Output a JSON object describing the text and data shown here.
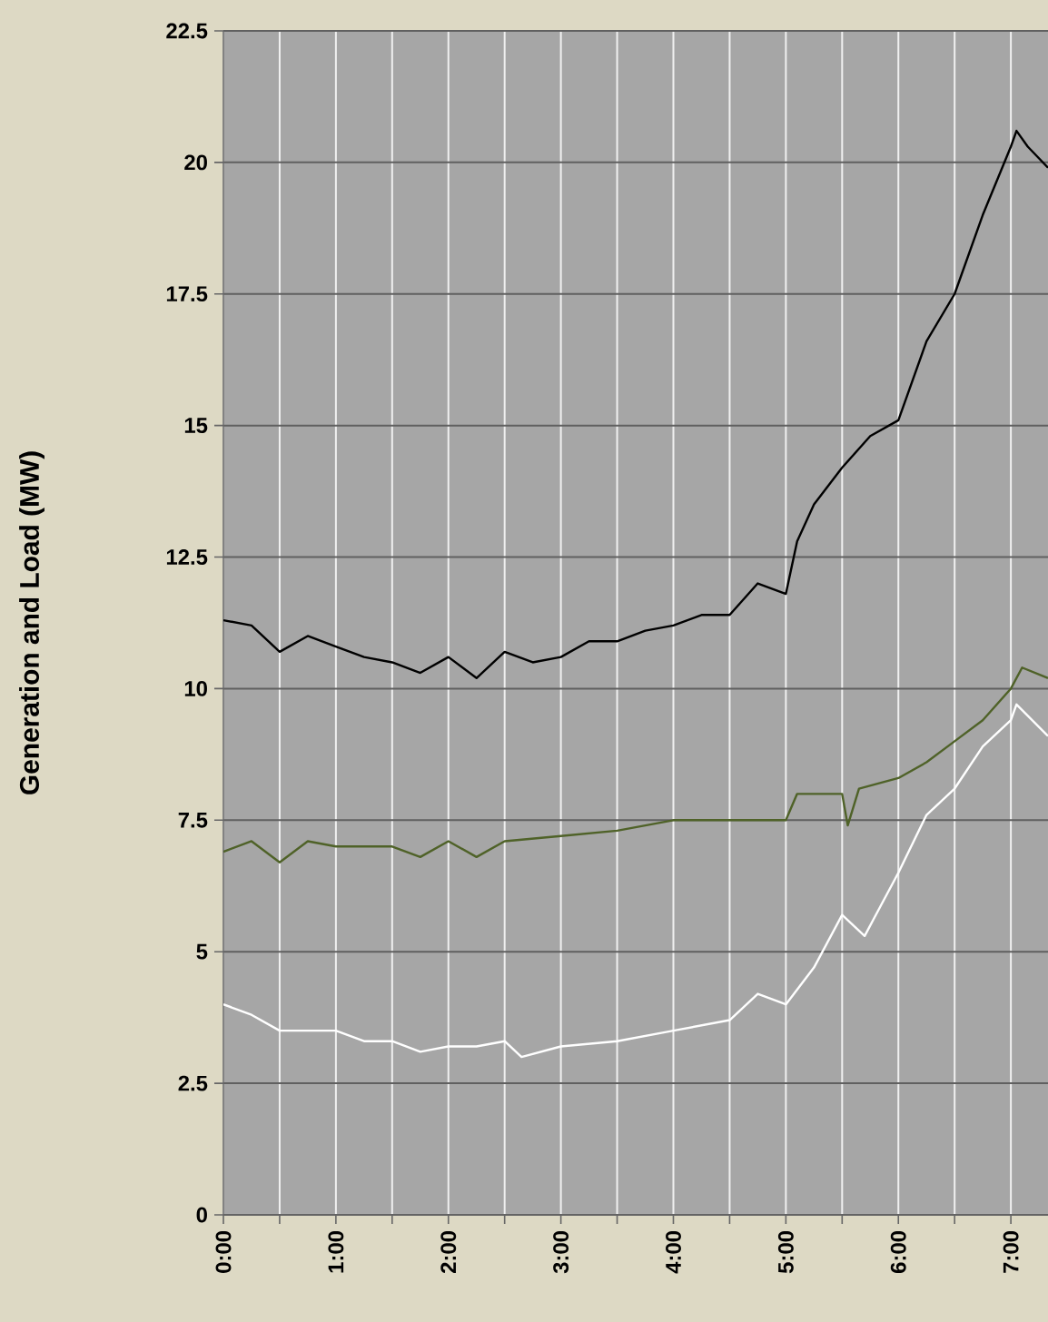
{
  "chart_data": {
    "type": "line",
    "ylabel": "Generation and Load (MW)",
    "xlim": [
      0,
      7.33
    ],
    "ylim": [
      0,
      22.5
    ],
    "xticks": [
      {
        "value": 0,
        "label": "0:00"
      },
      {
        "value": 0.5,
        "label": null
      },
      {
        "value": 1,
        "label": "1:00"
      },
      {
        "value": 1.5,
        "label": null
      },
      {
        "value": 2,
        "label": "2:00"
      },
      {
        "value": 2.5,
        "label": null
      },
      {
        "value": 3,
        "label": "3:00"
      },
      {
        "value": 3.5,
        "label": null
      },
      {
        "value": 4,
        "label": "4:00"
      },
      {
        "value": 4.5,
        "label": null
      },
      {
        "value": 5,
        "label": "5:00"
      },
      {
        "value": 5.5,
        "label": null
      },
      {
        "value": 6,
        "label": "6:00"
      },
      {
        "value": 6.5,
        "label": null
      },
      {
        "value": 7,
        "label": "7:00"
      }
    ],
    "yticks": [
      0,
      2.5,
      5,
      7.5,
      10,
      12.5,
      15,
      17.5,
      20,
      22.5
    ],
    "grid": true,
    "series": [
      {
        "color": "#000000",
        "x": [
          0,
          0.25,
          0.5,
          0.75,
          1.0,
          1.25,
          1.5,
          1.75,
          2.0,
          2.25,
          2.5,
          2.75,
          3.0,
          3.25,
          3.5,
          3.75,
          4.0,
          4.25,
          4.5,
          4.75,
          5.0,
          5.1,
          5.25,
          5.5,
          5.75,
          6.0,
          6.25,
          6.5,
          6.75,
          7.0,
          7.05,
          7.15,
          7.33
        ],
        "values": [
          11.3,
          11.2,
          10.7,
          11.0,
          10.8,
          10.6,
          10.5,
          10.3,
          10.6,
          10.2,
          10.7,
          10.5,
          10.6,
          10.9,
          10.9,
          11.1,
          11.2,
          11.4,
          11.4,
          12.0,
          11.8,
          12.8,
          13.5,
          14.2,
          14.8,
          15.1,
          16.6,
          17.5,
          19.0,
          20.3,
          20.6,
          20.3,
          19.9
        ]
      },
      {
        "color": "#4f6228",
        "x": [
          0,
          0.25,
          0.5,
          0.75,
          1.0,
          1.5,
          1.75,
          2.0,
          2.25,
          2.5,
          3.0,
          3.5,
          4.0,
          4.5,
          5.0,
          5.1,
          5.5,
          5.55,
          5.65,
          6.0,
          6.25,
          6.5,
          6.75,
          7.0,
          7.1,
          7.33
        ],
        "values": [
          6.9,
          7.1,
          6.7,
          7.1,
          7.0,
          7.0,
          6.8,
          7.1,
          6.8,
          7.1,
          7.2,
          7.3,
          7.5,
          7.5,
          7.5,
          8.0,
          8.0,
          7.4,
          8.1,
          8.3,
          8.6,
          9.0,
          9.4,
          10.0,
          10.4,
          10.2
        ]
      },
      {
        "color": "#ffffff",
        "x": [
          0,
          0.25,
          0.5,
          0.75,
          1.0,
          1.25,
          1.5,
          1.75,
          2.0,
          2.25,
          2.5,
          2.65,
          3.0,
          3.5,
          4.0,
          4.5,
          4.75,
          5.0,
          5.25,
          5.5,
          5.7,
          5.85,
          6.0,
          6.25,
          6.5,
          6.75,
          7.0,
          7.05,
          7.33
        ],
        "values": [
          4.0,
          3.8,
          3.5,
          3.5,
          3.5,
          3.3,
          3.3,
          3.1,
          3.2,
          3.2,
          3.3,
          3.0,
          3.2,
          3.3,
          3.5,
          3.7,
          4.2,
          4.0,
          4.7,
          5.7,
          5.3,
          5.9,
          6.5,
          7.6,
          8.1,
          8.9,
          9.4,
          9.7,
          9.1
        ]
      }
    ]
  }
}
